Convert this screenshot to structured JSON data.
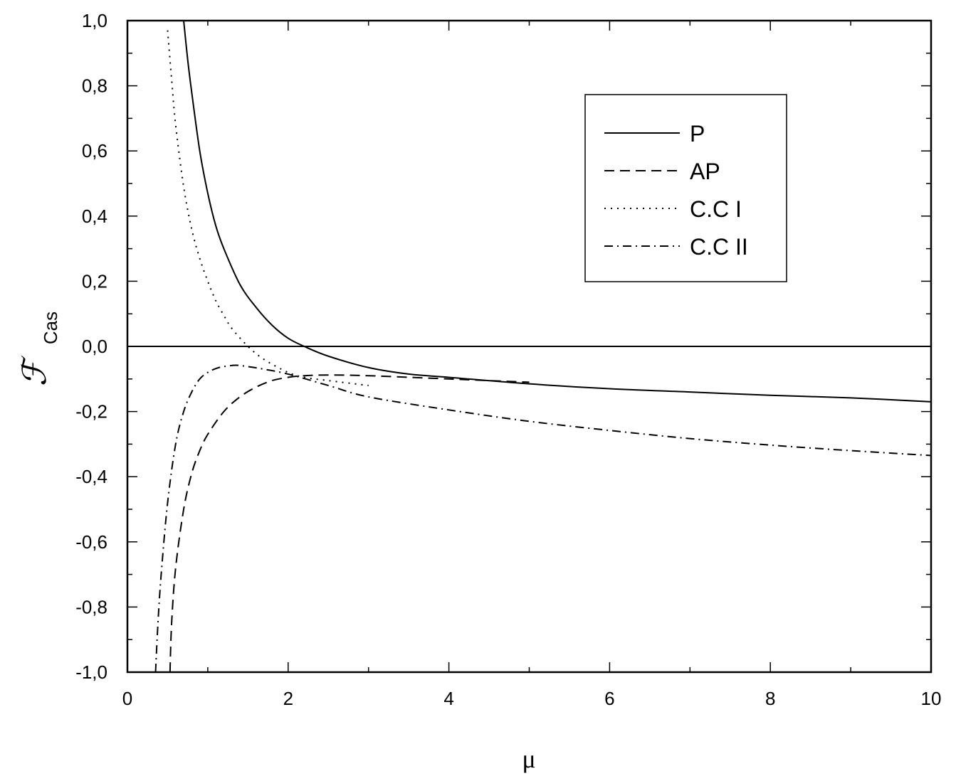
{
  "chart_data": {
    "type": "line",
    "xlabel": "μ",
    "ylabel": "ℱ",
    "ylabel_sub": "Cas",
    "xlim": [
      0,
      10
    ],
    "ylim": [
      -1.0,
      1.0
    ],
    "x_ticks": [
      0,
      2,
      4,
      6,
      8,
      10
    ],
    "x_tick_labels": [
      "0",
      "2",
      "4",
      "6",
      "8",
      "10"
    ],
    "y_ticks": [
      -1.0,
      -0.8,
      -0.6,
      -0.4,
      -0.2,
      0.0,
      0.2,
      0.4,
      0.6,
      0.8,
      1.0
    ],
    "y_tick_labels": [
      "-1,0",
      "-0,8",
      "-0,6",
      "-0,4",
      "-0,2",
      "0,0",
      "0,2",
      "0,4",
      "0,6",
      "0,8",
      "1,0"
    ],
    "zero_line": true,
    "grid": false,
    "legend_position": "top-right",
    "series": [
      {
        "name": "P",
        "style": "solid",
        "x": [
          0.7,
          0.75,
          0.8,
          0.9,
          1.0,
          1.1,
          1.2,
          1.4,
          1.6,
          1.8,
          2.0,
          2.2,
          2.5,
          3.0,
          3.5,
          4.0,
          5.0,
          6.0,
          7.0,
          8.0,
          9.0,
          10.0
        ],
        "y": [
          1.0,
          0.88,
          0.78,
          0.6,
          0.47,
          0.37,
          0.3,
          0.19,
          0.12,
          0.065,
          0.025,
          0.0,
          -0.03,
          -0.065,
          -0.085,
          -0.095,
          -0.115,
          -0.13,
          -0.14,
          -0.15,
          -0.158,
          -0.17
        ]
      },
      {
        "name": "AP",
        "style": "dashed",
        "x": [
          0.53,
          0.55,
          0.6,
          0.7,
          0.8,
          0.9,
          1.0,
          1.2,
          1.4,
          1.6,
          1.8,
          2.0,
          2.2,
          2.5,
          3.0,
          4.0,
          5.0
        ],
        "y": [
          -1.0,
          -0.85,
          -0.68,
          -0.5,
          -0.39,
          -0.32,
          -0.27,
          -0.2,
          -0.155,
          -0.125,
          -0.105,
          -0.095,
          -0.09,
          -0.088,
          -0.09,
          -0.1,
          -0.11
        ]
      },
      {
        "name": "C.C I",
        "style": "dotted",
        "x": [
          0.5,
          0.55,
          0.6,
          0.7,
          0.8,
          0.9,
          1.0,
          1.1,
          1.2,
          1.3,
          1.5,
          1.7,
          2.0,
          2.2,
          2.5,
          3.0
        ],
        "y": [
          0.97,
          0.82,
          0.68,
          0.49,
          0.36,
          0.27,
          0.2,
          0.14,
          0.095,
          0.055,
          0.0,
          -0.04,
          -0.08,
          -0.095,
          -0.105,
          -0.12
        ]
      },
      {
        "name": "C.C II",
        "style": "dashdot",
        "x": [
          0.35,
          0.38,
          0.42,
          0.5,
          0.6,
          0.7,
          0.8,
          0.9,
          1.0,
          1.1,
          1.2,
          1.35,
          1.5,
          1.7,
          2.0,
          2.5,
          3.0,
          4.0,
          5.0,
          6.0,
          7.0,
          8.0,
          9.0,
          10.0
        ],
        "y": [
          -1.0,
          -0.85,
          -0.7,
          -0.48,
          -0.3,
          -0.2,
          -0.14,
          -0.1,
          -0.08,
          -0.068,
          -0.062,
          -0.058,
          -0.062,
          -0.07,
          -0.085,
          -0.12,
          -0.155,
          -0.195,
          -0.23,
          -0.258,
          -0.283,
          -0.303,
          -0.32,
          -0.335
        ]
      }
    ]
  }
}
